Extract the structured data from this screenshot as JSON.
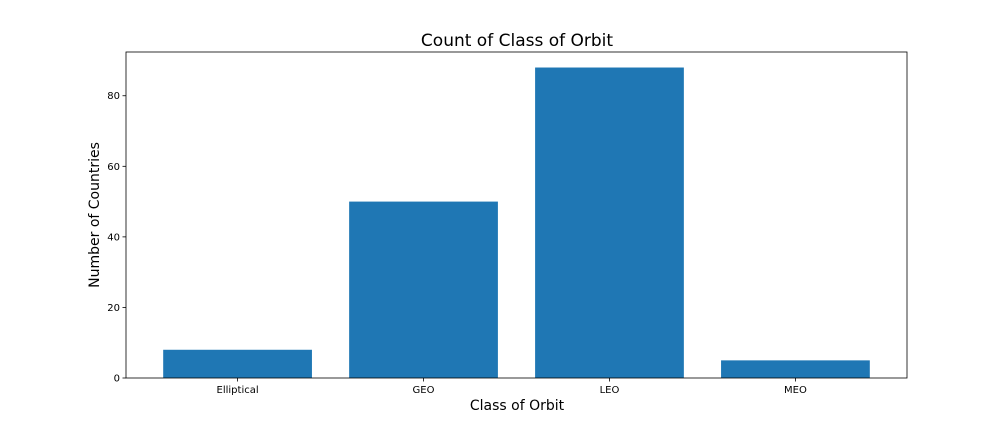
{
  "chart_data": {
    "type": "bar",
    "title": "Count of Class of Orbit",
    "xlabel": "Class of Orbit",
    "ylabel": "Number of Countries",
    "categories": [
      "Elliptical",
      "GEO",
      "LEO",
      "MEO"
    ],
    "values": [
      8,
      50,
      88,
      5
    ],
    "ylim": [
      0,
      92.4
    ],
    "yticks": [
      0,
      20,
      40,
      60,
      80
    ],
    "bar_color": "#1f77b4",
    "grid": false,
    "legend": "none"
  }
}
